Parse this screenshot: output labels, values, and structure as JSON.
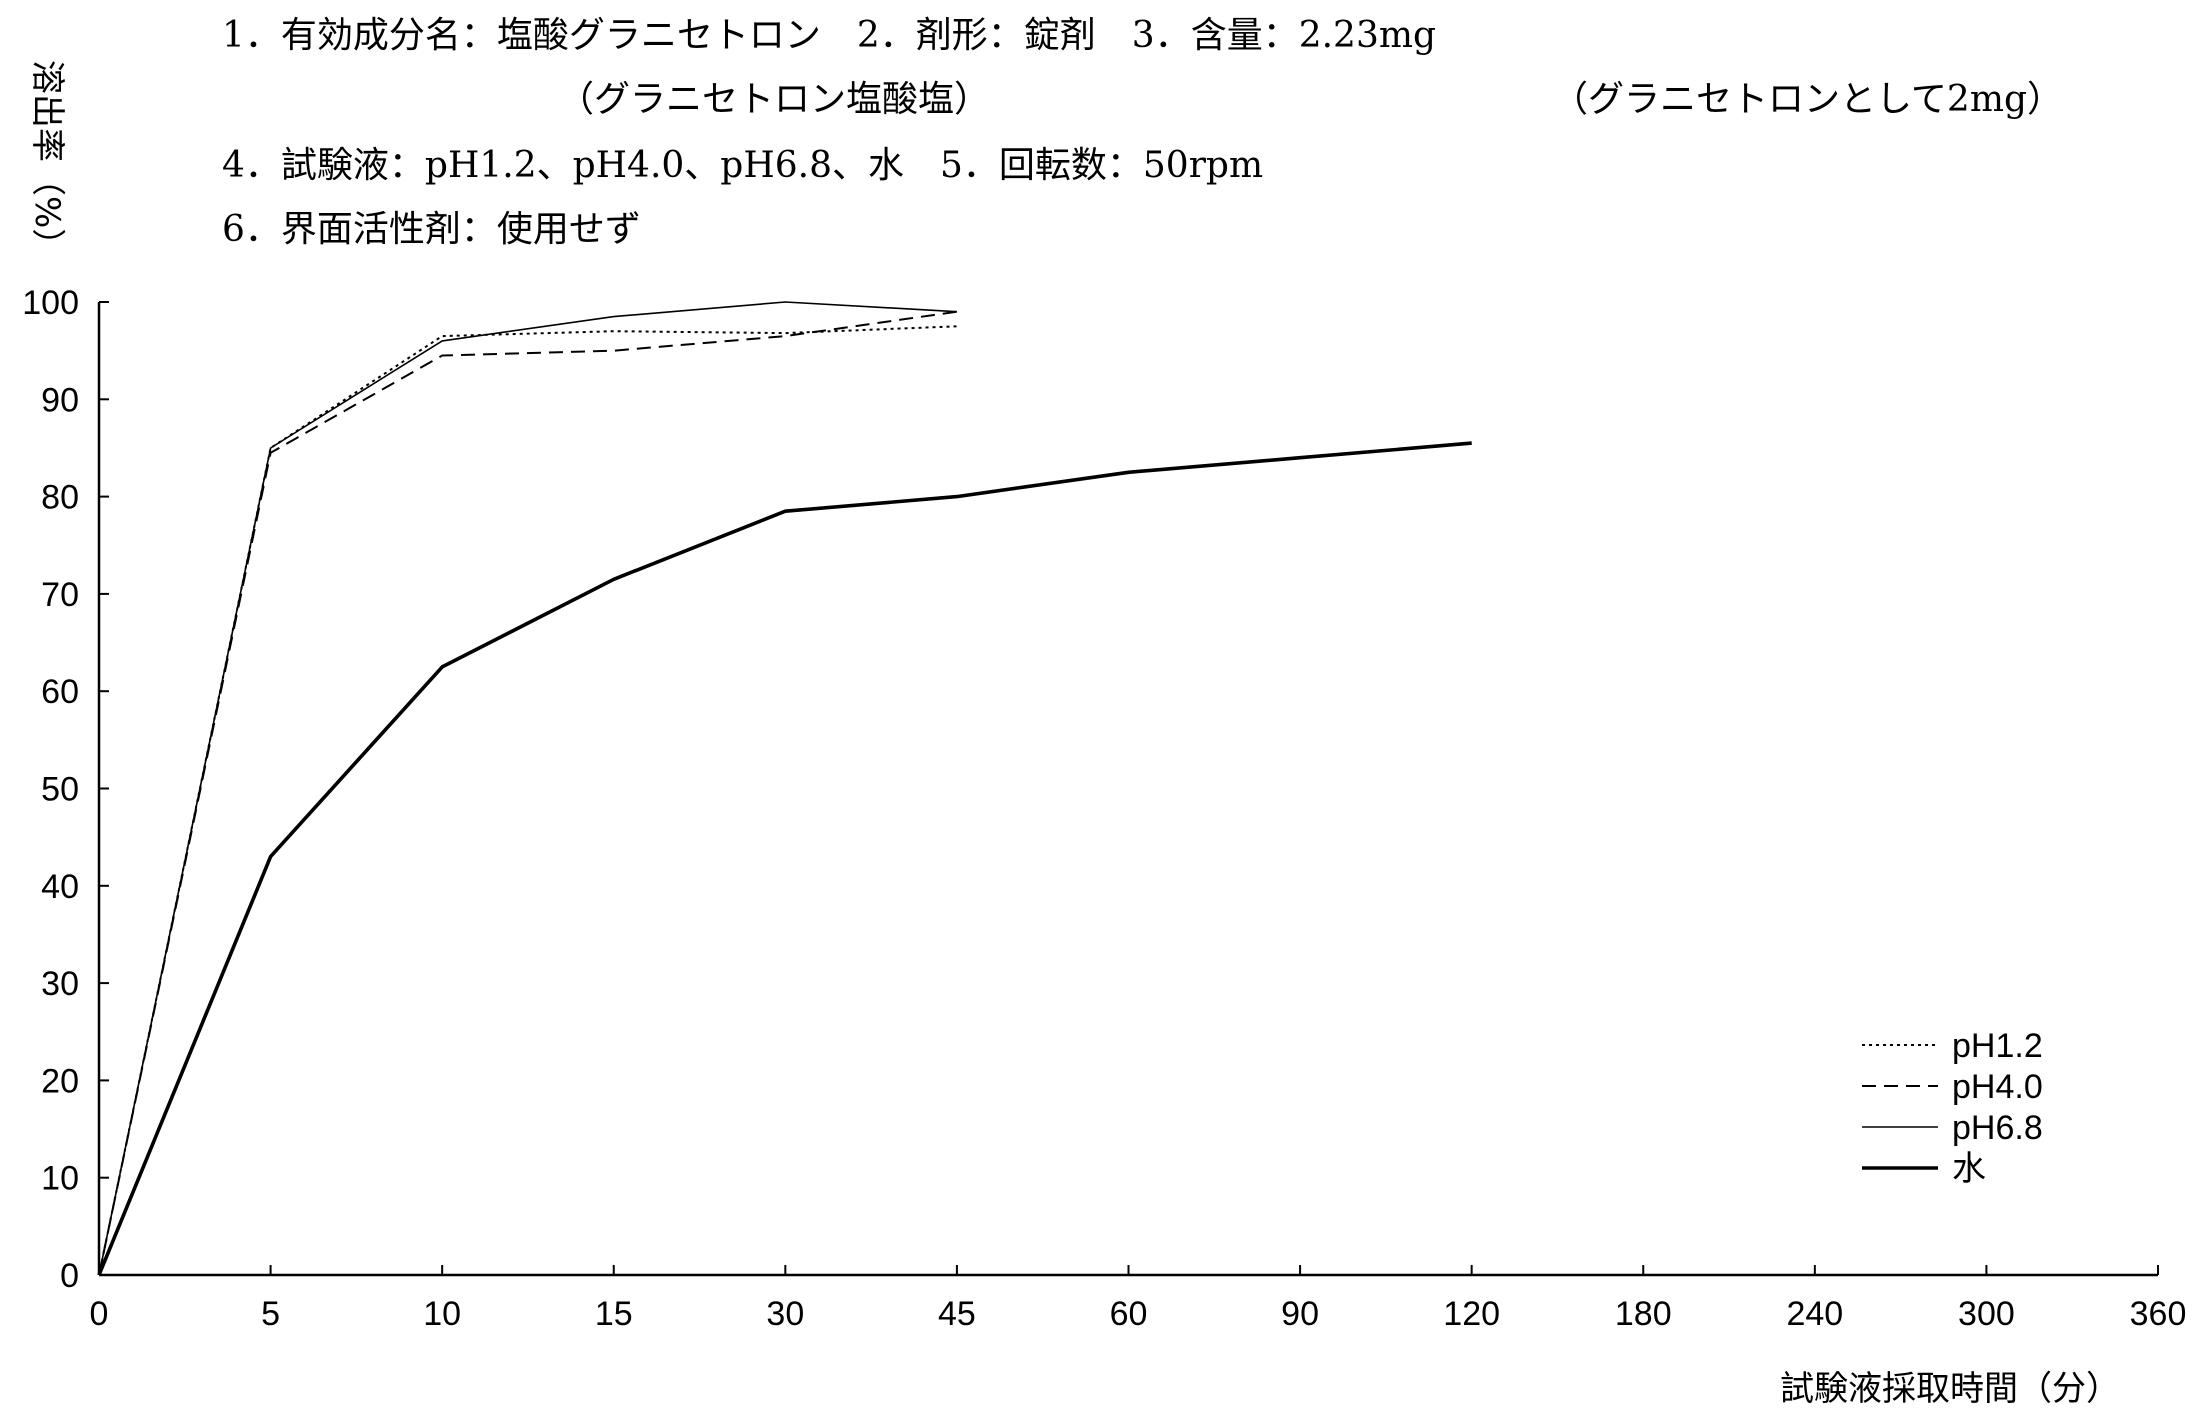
{
  "header": {
    "line1": "1．有効成分名：塩酸グラニセトロン　2．剤形：錠剤　3．含量：2.23mg",
    "line2a": "（グラニセトロン塩酸塩）",
    "line2b": "（グラニセトロンとして2mg）",
    "line3": "4．試験液：pH1.2、pH4.0、pH6.8、水　5．回転数：50rpm",
    "line4": "6．界面活性剤：使用せず"
  },
  "chart_data": {
    "type": "line",
    "ylabel": "溶出率（%）",
    "xlabel": "試験液採取時間（分）",
    "ylim": [
      0,
      100
    ],
    "yticks": [
      0,
      10,
      20,
      30,
      40,
      50,
      60,
      70,
      80,
      90,
      100
    ],
    "x": [
      0,
      5,
      10,
      15,
      30,
      45,
      60,
      90,
      120,
      180,
      240,
      300,
      360
    ],
    "xtick_labels": [
      "0",
      "5",
      "10",
      "15",
      "30",
      "45",
      "60",
      "90",
      "120",
      "180",
      "240",
      "300",
      "360"
    ],
    "grid": false,
    "legend_position": "bottom-right",
    "series": [
      {
        "name": "pH1.2",
        "style": "dotted",
        "color": "#000000",
        "points": [
          [
            0,
            0
          ],
          [
            5,
            85
          ],
          [
            10,
            96.5
          ],
          [
            15,
            97
          ],
          [
            30,
            96.8
          ],
          [
            45,
            97.5
          ]
        ]
      },
      {
        "name": "pH4.0",
        "style": "dashed",
        "color": "#000000",
        "points": [
          [
            0,
            0
          ],
          [
            5,
            84.5
          ],
          [
            10,
            94.5
          ],
          [
            15,
            95
          ],
          [
            30,
            96.5
          ],
          [
            45,
            99
          ]
        ]
      },
      {
        "name": "pH6.8",
        "style": "thin",
        "color": "#000000",
        "points": [
          [
            0,
            0
          ],
          [
            5,
            85
          ],
          [
            10,
            96
          ],
          [
            15,
            98.5
          ],
          [
            30,
            100
          ],
          [
            45,
            99
          ]
        ]
      },
      {
        "name": "水",
        "style": "thick",
        "color": "#000000",
        "points": [
          [
            0,
            0
          ],
          [
            5,
            43
          ],
          [
            10,
            62.5
          ],
          [
            15,
            71.5
          ],
          [
            30,
            78.5
          ],
          [
            45,
            80
          ],
          [
            60,
            82.5
          ],
          [
            90,
            84
          ],
          [
            120,
            85.5
          ]
        ]
      }
    ]
  }
}
